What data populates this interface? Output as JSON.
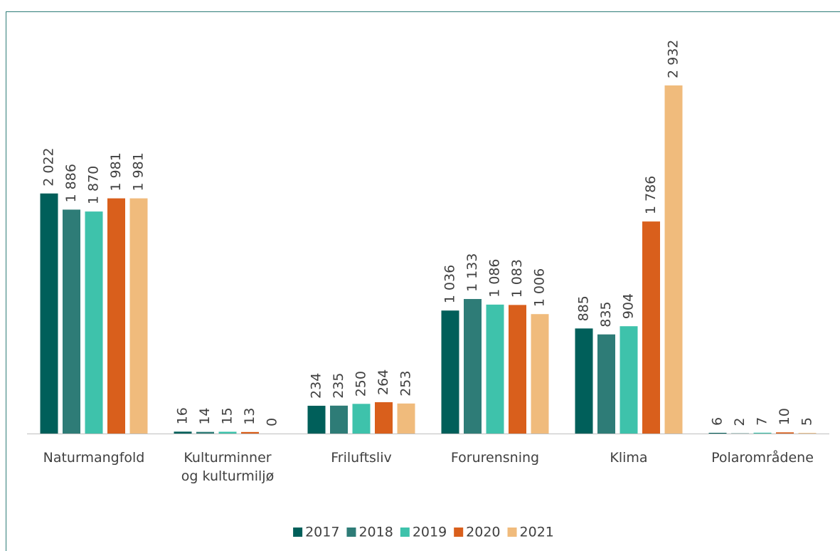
{
  "chart_data": {
    "type": "bar",
    "categories": [
      "Naturmangfold",
      "Kulturminner og kulturmiljø",
      "Friluftsliv",
      "Forurensning",
      "Klima",
      "Polarområdene"
    ],
    "series": [
      {
        "name": "2017",
        "color": "#005f5a",
        "values": [
          2022,
          16,
          234,
          1036,
          885,
          6
        ],
        "value_labels": [
          "2 022",
          "16",
          "234",
          "1 036",
          "885",
          "6"
        ]
      },
      {
        "name": "2018",
        "color": "#2e7c77",
        "values": [
          1886,
          14,
          235,
          1133,
          835,
          2
        ],
        "value_labels": [
          "1 886",
          "14",
          "235",
          "1 133",
          "835",
          "2"
        ]
      },
      {
        "name": "2019",
        "color": "#3ec2ab",
        "values": [
          1870,
          15,
          250,
          1086,
          904,
          7
        ],
        "value_labels": [
          "1 870",
          "15",
          "250",
          "1 086",
          "904",
          "7"
        ]
      },
      {
        "name": "2020",
        "color": "#d95f1c",
        "values": [
          1981,
          13,
          264,
          1083,
          1786,
          10
        ],
        "value_labels": [
          "1 981",
          "13",
          "264",
          "1 083",
          "1 786",
          "10"
        ]
      },
      {
        "name": "2021",
        "color": "#f0bb7c",
        "values": [
          1981,
          0,
          253,
          1006,
          2932,
          5
        ],
        "value_labels": [
          "1 981",
          "0",
          "253",
          "1 006",
          "2 932",
          "5"
        ]
      }
    ]
  }
}
